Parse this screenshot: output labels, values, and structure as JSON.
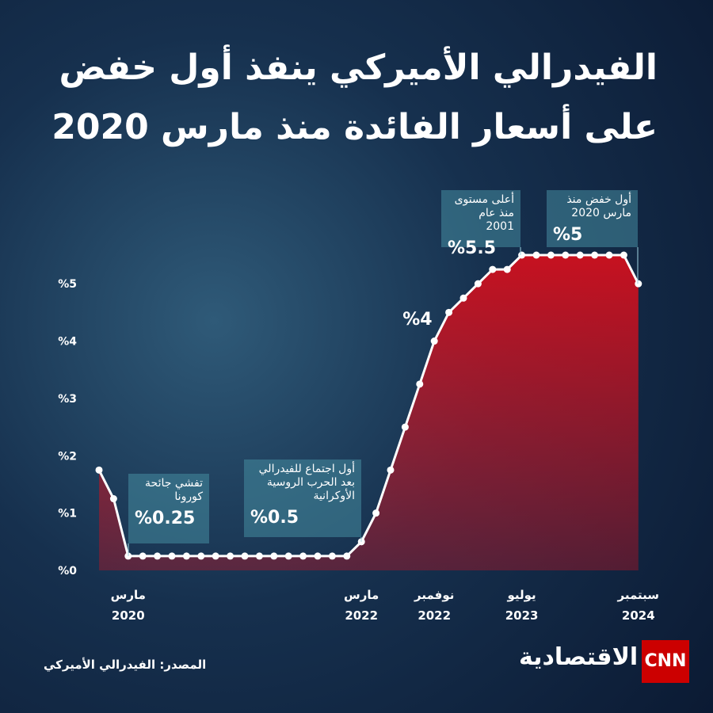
{
  "chart_data": {
    "type": "area",
    "title": "الفيدرالي الأميركي ينفذ أول خفض",
    "subtitle": "على أسعار الفائدة منذ مارس 2020",
    "categories": [
      null,
      null,
      "مارس 2020",
      null,
      null,
      null,
      null,
      null,
      null,
      null,
      null,
      null,
      null,
      null,
      null,
      null,
      null,
      null,
      "مارس 2022",
      null,
      null,
      null,
      null,
      "نوفمبر 2022",
      null,
      null,
      null,
      null,
      null,
      "يوليو 2023",
      null,
      null,
      null,
      null,
      null,
      null,
      null,
      "سبتمبر 2024"
    ],
    "values": [
      1.75,
      1.25,
      0.25,
      0.25,
      0.25,
      0.25,
      0.25,
      0.25,
      0.25,
      0.25,
      0.25,
      0.25,
      0.25,
      0.25,
      0.25,
      0.25,
      0.25,
      0.25,
      0.5,
      1.0,
      1.75,
      2.5,
      3.25,
      4.0,
      4.5,
      4.75,
      5.0,
      5.25,
      5.25,
      5.5,
      5.5,
      5.5,
      5.5,
      5.5,
      5.5,
      5.5,
      5.5,
      5.0
    ],
    "color": "#ffffff",
    "area_color": "#d0101e",
    "ylim": [
      0,
      5.5
    ],
    "yticks": [
      {
        "value": 0,
        "label": "%0"
      },
      {
        "value": 1,
        "label": "%1"
      },
      {
        "value": 2,
        "label": "%2"
      },
      {
        "value": 3,
        "label": "%3"
      },
      {
        "value": 4,
        "label": "%4"
      },
      {
        "value": 5,
        "label": "%5"
      }
    ],
    "annotations": [
      {
        "text": "تفشي جائحة كورونا",
        "label": "%0.25"
      },
      {
        "text": "أول اجتماع للفيدرالي بعد الحرب الروسية الأوكرانية",
        "label": "%0.5"
      },
      {
        "label": "%4"
      },
      {
        "text": "أعلى مستوى منذ عام 2001",
        "label": "%5.5"
      },
      {
        "text": "أول خفض منذ مارس 2020",
        "label": "%5"
      }
    ],
    "source": "المصدر: الفيدرالي الأميركي",
    "brand": "الاقتصادية",
    "logo": "CNN"
  }
}
